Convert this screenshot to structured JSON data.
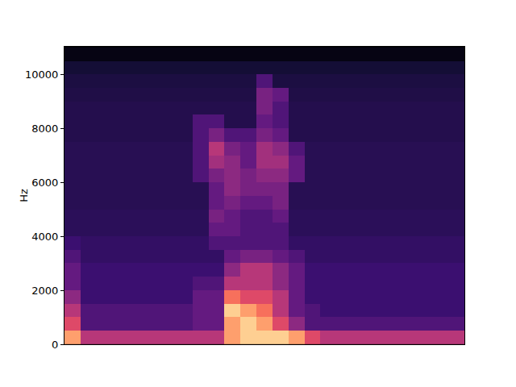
{
  "chart_data": {
    "type": "heatmap",
    "ylabel": "Hz",
    "ylim": [
      0,
      11025
    ],
    "yticks": [
      0,
      2000,
      4000,
      6000,
      8000,
      10000
    ],
    "tick_labels": "y",
    "zlim": [
      0,
      10
    ],
    "y": [
      250,
      750,
      1250,
      1750,
      2250,
      2750,
      3250,
      3750,
      4250,
      4750,
      5250,
      5750,
      6250,
      6750,
      7250,
      7750,
      8250,
      8750,
      9250,
      9750,
      10250,
      10750
    ],
    "cells": [
      [
        8,
        5,
        5,
        5,
        5,
        5,
        5,
        5,
        5,
        5,
        8,
        9,
        9,
        9,
        8,
        6,
        5,
        5,
        5,
        5,
        5,
        5,
        5,
        5,
        5
      ],
      [
        6,
        2.5,
        2.5,
        2.5,
        2.5,
        2.5,
        2.5,
        2.5,
        3,
        3,
        8,
        9,
        8,
        6,
        4,
        2.5,
        2.5,
        2.5,
        2.5,
        2.5,
        2.5,
        2.5,
        2.5,
        2.5,
        2.5
      ],
      [
        5,
        2.5,
        2.5,
        2.5,
        2.5,
        2.5,
        2.5,
        2.5,
        3,
        3,
        9,
        8,
        7,
        5,
        3,
        2.5,
        2,
        2,
        2,
        2,
        2,
        2,
        2,
        2,
        2
      ],
      [
        4,
        2,
        2,
        2,
        2,
        2,
        2,
        2,
        3,
        3,
        7,
        6,
        6,
        5,
        3,
        2,
        2,
        2,
        2,
        2,
        2,
        2,
        2,
        2,
        2
      ],
      [
        3,
        2,
        2,
        2,
        2,
        2,
        2,
        2,
        2.5,
        2.5,
        5,
        5,
        5,
        4,
        3,
        2,
        2,
        2,
        2,
        2,
        2,
        2,
        2,
        2,
        2
      ],
      [
        3,
        2,
        2,
        2,
        2,
        2,
        2,
        2,
        2,
        2,
        4,
        5,
        5,
        4,
        3,
        2,
        2,
        2,
        2,
        2,
        2,
        2,
        2,
        2,
        2
      ],
      [
        2.5,
        1.8,
        1.8,
        1.8,
        1.8,
        1.8,
        1.8,
        1.8,
        1.8,
        1.8,
        3,
        3.5,
        3.5,
        3,
        2.5,
        1.8,
        1.8,
        1.8,
        1.8,
        1.8,
        1.8,
        1.8,
        1.8,
        1.8,
        1.8
      ],
      [
        2,
        1.8,
        1.8,
        1.8,
        1.8,
        1.8,
        1.8,
        1.8,
        1.8,
        2.5,
        2.5,
        2.5,
        2.5,
        2.5,
        1.8,
        1.8,
        1.8,
        1.8,
        1.8,
        1.8,
        1.8,
        1.8,
        1.8,
        1.8,
        1.8
      ],
      [
        1.6,
        1.6,
        1.6,
        1.6,
        1.6,
        1.6,
        1.6,
        1.6,
        1.6,
        3,
        3,
        2.5,
        2.5,
        2.5,
        1.6,
        1.6,
        1.6,
        1.6,
        1.6,
        1.6,
        1.6,
        1.6,
        1.6,
        1.6,
        1.6
      ],
      [
        1.6,
        1.6,
        1.6,
        1.6,
        1.6,
        1.6,
        1.6,
        1.6,
        1.6,
        3.5,
        3,
        2.5,
        2.5,
        3,
        1.6,
        1.6,
        1.6,
        1.6,
        1.6,
        1.6,
        1.6,
        1.6,
        1.6,
        1.6,
        1.6
      ],
      [
        1.5,
        1.5,
        1.5,
        1.5,
        1.5,
        1.5,
        1.5,
        1.5,
        1.5,
        3,
        3.5,
        3,
        3,
        3.5,
        1.5,
        1.5,
        1.5,
        1.5,
        1.5,
        1.5,
        1.5,
        1.5,
        1.5,
        1.5,
        1.5
      ],
      [
        1.5,
        1.5,
        1.5,
        1.5,
        1.5,
        1.5,
        1.5,
        1.5,
        1.5,
        3,
        4,
        3.5,
        3.5,
        3.5,
        1.5,
        1.5,
        1.5,
        1.5,
        1.5,
        1.5,
        1.5,
        1.5,
        1.5,
        1.5,
        1.5
      ],
      [
        1.5,
        1.5,
        1.5,
        1.5,
        1.5,
        1.5,
        1.5,
        1.5,
        2.5,
        3.5,
        4,
        3.5,
        4,
        4,
        3,
        1.5,
        1.5,
        1.5,
        1.5,
        1.5,
        1.5,
        1.5,
        1.5,
        1.5,
        1.5
      ],
      [
        1.5,
        1.5,
        1.5,
        1.5,
        1.5,
        1.5,
        1.5,
        1.5,
        2.5,
        4.5,
        4,
        3,
        4.5,
        4.5,
        3,
        1.5,
        1.5,
        1.5,
        1.5,
        1.5,
        1.5,
        1.5,
        1.5,
        1.5,
        1.5
      ],
      [
        1.5,
        1.5,
        1.5,
        1.5,
        1.5,
        1.5,
        1.5,
        1.5,
        2.5,
        5,
        3.5,
        3,
        4.5,
        4,
        2.5,
        1.5,
        1.5,
        1.5,
        1.5,
        1.5,
        1.5,
        1.5,
        1.5,
        1.5,
        1.5
      ],
      [
        1.4,
        1.4,
        1.4,
        1.4,
        1.4,
        1.4,
        1.4,
        1.4,
        2.5,
        3.5,
        2.5,
        2.5,
        3.5,
        3,
        1.4,
        1.4,
        1.4,
        1.4,
        1.4,
        1.4,
        1.4,
        1.4,
        1.4,
        1.4,
        1.4
      ],
      [
        1.4,
        1.4,
        1.4,
        1.4,
        1.4,
        1.4,
        1.4,
        1.4,
        2.5,
        2.5,
        1.4,
        1.4,
        3,
        2.5,
        1.4,
        1.4,
        1.4,
        1.4,
        1.4,
        1.4,
        1.4,
        1.4,
        1.4,
        1.4,
        1.4
      ],
      [
        1.4,
        1.4,
        1.4,
        1.4,
        1.4,
        1.4,
        1.4,
        1.4,
        1.4,
        1.4,
        1.4,
        1.4,
        3.5,
        2.5,
        1.4,
        1.4,
        1.4,
        1.4,
        1.4,
        1.4,
        1.4,
        1.4,
        1.4,
        1.4,
        1.4
      ],
      [
        1.3,
        1.3,
        1.3,
        1.3,
        1.3,
        1.3,
        1.3,
        1.3,
        1.3,
        1.3,
        1.3,
        1.3,
        3.5,
        3,
        1.3,
        1.3,
        1.3,
        1.3,
        1.3,
        1.3,
        1.3,
        1.3,
        1.3,
        1.3,
        1.3
      ],
      [
        1.2,
        1.2,
        1.2,
        1.2,
        1.2,
        1.2,
        1.2,
        1.2,
        1.2,
        1.2,
        1.2,
        1.2,
        2.5,
        1.2,
        1.2,
        1.2,
        1.2,
        1.2,
        1.2,
        1.2,
        1.2,
        1.2,
        1.2,
        1.2,
        1.2
      ],
      [
        1,
        1,
        1,
        1,
        1,
        1,
        1,
        1,
        1,
        1,
        1,
        1,
        1,
        1,
        1,
        1,
        1,
        1,
        1,
        1,
        1,
        1,
        1,
        1,
        1
      ],
      [
        0.3,
        0.3,
        0.3,
        0.3,
        0.3,
        0.3,
        0.3,
        0.3,
        0.3,
        0.3,
        0.3,
        0.3,
        0.3,
        0.3,
        0.3,
        0.3,
        0.3,
        0.3,
        0.3,
        0.3,
        0.3,
        0.3,
        0.3,
        0.3,
        0.3
      ]
    ]
  }
}
